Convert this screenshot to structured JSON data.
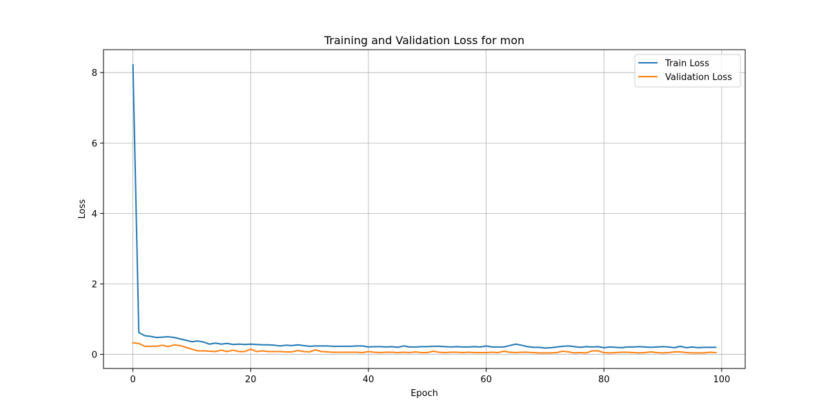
{
  "chart_data": {
    "type": "line",
    "title": "Training and Validation Loss for mon",
    "xlabel": "Epoch",
    "ylabel": "Loss",
    "xlim": [
      -5,
      104
    ],
    "ylim": [
      -0.4,
      8.65
    ],
    "xticks": [
      0,
      20,
      40,
      60,
      80,
      100
    ],
    "yticks": [
      0,
      2,
      4,
      6,
      8
    ],
    "grid": true,
    "legend_position": "top-right",
    "colors": {
      "Train Loss": "#1f77b4",
      "Validation Loss": "#ff7f0e"
    },
    "x": [
      0,
      1,
      2,
      3,
      4,
      5,
      6,
      7,
      8,
      9,
      10,
      11,
      12,
      13,
      14,
      15,
      16,
      17,
      18,
      19,
      20,
      21,
      22,
      23,
      24,
      25,
      26,
      27,
      28,
      29,
      30,
      31,
      32,
      33,
      34,
      35,
      36,
      37,
      38,
      39,
      40,
      41,
      42,
      43,
      44,
      45,
      46,
      47,
      48,
      49,
      50,
      51,
      52,
      53,
      54,
      55,
      56,
      57,
      58,
      59,
      60,
      61,
      62,
      63,
      64,
      65,
      66,
      67,
      68,
      69,
      70,
      71,
      72,
      73,
      74,
      75,
      76,
      77,
      78,
      79,
      80,
      81,
      82,
      83,
      84,
      85,
      86,
      87,
      88,
      89,
      90,
      91,
      92,
      93,
      94,
      95,
      96,
      97,
      98,
      99
    ],
    "series": [
      {
        "name": "Train Loss",
        "values": [
          8.22,
          0.62,
          0.53,
          0.51,
          0.48,
          0.49,
          0.5,
          0.48,
          0.44,
          0.4,
          0.36,
          0.38,
          0.35,
          0.29,
          0.32,
          0.29,
          0.31,
          0.28,
          0.29,
          0.28,
          0.29,
          0.28,
          0.27,
          0.27,
          0.26,
          0.24,
          0.26,
          0.25,
          0.27,
          0.25,
          0.23,
          0.24,
          0.24,
          0.24,
          0.23,
          0.23,
          0.23,
          0.23,
          0.24,
          0.24,
          0.21,
          0.22,
          0.22,
          0.21,
          0.22,
          0.2,
          0.24,
          0.21,
          0.21,
          0.22,
          0.22,
          0.23,
          0.23,
          0.22,
          0.21,
          0.22,
          0.21,
          0.21,
          0.22,
          0.21,
          0.24,
          0.21,
          0.21,
          0.21,
          0.25,
          0.29,
          0.26,
          0.22,
          0.2,
          0.2,
          0.18,
          0.19,
          0.21,
          0.23,
          0.24,
          0.22,
          0.2,
          0.22,
          0.21,
          0.22,
          0.19,
          0.21,
          0.2,
          0.19,
          0.21,
          0.21,
          0.22,
          0.21,
          0.2,
          0.21,
          0.22,
          0.21,
          0.19,
          0.23,
          0.19,
          0.21,
          0.19,
          0.2,
          0.2,
          0.2
        ]
      },
      {
        "name": "Validation Loss",
        "values": [
          0.33,
          0.31,
          0.23,
          0.23,
          0.23,
          0.26,
          0.22,
          0.27,
          0.25,
          0.2,
          0.15,
          0.1,
          0.1,
          0.09,
          0.08,
          0.12,
          0.08,
          0.12,
          0.08,
          0.08,
          0.15,
          0.08,
          0.1,
          0.08,
          0.08,
          0.08,
          0.07,
          0.07,
          0.11,
          0.08,
          0.07,
          0.13,
          0.08,
          0.07,
          0.06,
          0.06,
          0.06,
          0.06,
          0.06,
          0.05,
          0.08,
          0.06,
          0.05,
          0.06,
          0.06,
          0.05,
          0.06,
          0.05,
          0.07,
          0.05,
          0.05,
          0.09,
          0.06,
          0.05,
          0.06,
          0.06,
          0.05,
          0.06,
          0.05,
          0.05,
          0.05,
          0.06,
          0.05,
          0.09,
          0.06,
          0.05,
          0.06,
          0.06,
          0.05,
          0.04,
          0.04,
          0.04,
          0.05,
          0.09,
          0.07,
          0.04,
          0.05,
          0.04,
          0.1,
          0.1,
          0.05,
          0.04,
          0.05,
          0.06,
          0.06,
          0.05,
          0.04,
          0.05,
          0.07,
          0.05,
          0.04,
          0.05,
          0.07,
          0.07,
          0.05,
          0.04,
          0.04,
          0.04,
          0.06,
          0.05
        ]
      }
    ]
  }
}
